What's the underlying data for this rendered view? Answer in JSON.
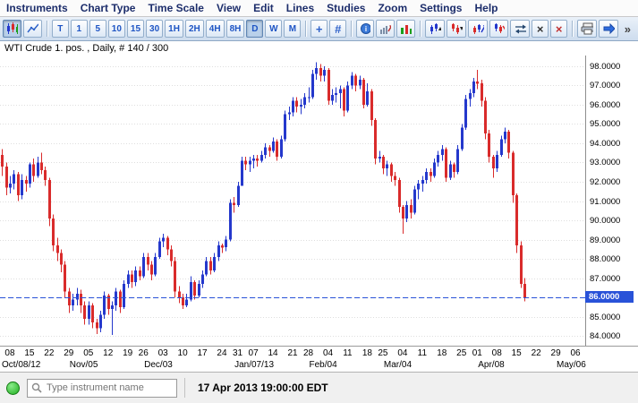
{
  "menu": {
    "items": [
      {
        "label": "Instruments"
      },
      {
        "label": "Chart Type"
      },
      {
        "label": "Time Scale"
      },
      {
        "label": "View"
      },
      {
        "label": "Edit"
      },
      {
        "label": "Lines"
      },
      {
        "label": "Studies"
      },
      {
        "label": "Zoom"
      },
      {
        "label": "Settings"
      },
      {
        "label": "Help"
      }
    ]
  },
  "toolbar": {
    "intervals": [
      {
        "label": "T"
      },
      {
        "label": "1"
      },
      {
        "label": "5"
      },
      {
        "label": "10"
      },
      {
        "label": "15"
      },
      {
        "label": "30"
      },
      {
        "label": "1H"
      },
      {
        "label": "2H"
      },
      {
        "label": "4H"
      },
      {
        "label": "8H"
      },
      {
        "label": "D",
        "selected": true
      },
      {
        "label": "W"
      },
      {
        "label": "M"
      }
    ],
    "crosshair_label": "+",
    "grid_label": "#",
    "delete_label": "×",
    "delete_all_label": "×",
    "more_label": "»",
    "icon_buttons": [
      "candlestick-style",
      "line-style",
      "crosshair",
      "grid",
      "indicator-info",
      "auto-scale",
      "volume-study",
      "pattern-up",
      "pattern-down",
      "trend-up",
      "trend-down",
      "reset-zoom",
      "delete-line",
      "delete-all",
      "print",
      "pointer",
      "more-tools"
    ]
  },
  "chart": {
    "title": "WTI Crude 1. pos. , Daily, # 140 / 300",
    "last_price_label": "86.0000",
    "price_axis_labels": [
      "98.0000",
      "97.0000",
      "96.0000",
      "95.0000",
      "94.0000",
      "93.0000",
      "92.0000",
      "91.0000",
      "90.0000",
      "89.0000",
      "88.0000",
      "87.0000",
      "86.0000",
      "85.0000",
      "84.0000"
    ]
  },
  "chart_data": {
    "type": "candlestick",
    "title": "WTI Crude 1. pos. , Daily, # 140 / 300",
    "instrument": "WTI Crude 1. pos.",
    "interval": "Daily",
    "bars_counter": "140 / 300",
    "y_range": [
      83.5,
      98.55
    ],
    "y_ticks": [
      84,
      85,
      86,
      87,
      88,
      89,
      90,
      91,
      92,
      93,
      94,
      95,
      96,
      97,
      98
    ],
    "current_price": 86.0,
    "total_slots": 149,
    "up_color": "#2438cc",
    "down_color": "#d92b2b",
    "grid": "horizontal-dotted",
    "legend_position": "none",
    "candles_ohlc": [
      [
        93.4,
        93.7,
        92.3,
        92.8
      ],
      [
        92.8,
        93.0,
        91.3,
        91.7
      ],
      [
        91.7,
        92.3,
        91.4,
        91.9
      ],
      [
        91.9,
        92.6,
        91.6,
        92.4
      ],
      [
        92.4,
        92.5,
        91.0,
        91.3
      ],
      [
        91.3,
        92.4,
        91.1,
        92.1
      ],
      [
        92.1,
        92.3,
        91.5,
        91.9
      ],
      [
        91.9,
        93.0,
        91.7,
        92.9
      ],
      [
        92.9,
        93.2,
        92.0,
        92.3
      ],
      [
        92.3,
        93.3,
        92.2,
        93.0
      ],
      [
        93.0,
        93.5,
        92.4,
        92.6
      ],
      [
        92.6,
        92.8,
        91.8,
        92.1
      ],
      [
        92.1,
        92.2,
        89.7,
        90.1
      ],
      [
        90.1,
        90.3,
        88.4,
        88.7
      ],
      [
        88.7,
        89.1,
        87.9,
        88.3
      ],
      [
        88.3,
        88.5,
        87.3,
        87.7
      ],
      [
        87.7,
        87.9,
        86.0,
        86.3
      ],
      [
        86.3,
        86.5,
        85.2,
        85.6
      ],
      [
        85.6,
        86.2,
        85.3,
        85.9
      ],
      [
        85.9,
        86.5,
        85.6,
        86.2
      ],
      [
        86.2,
        86.4,
        85.2,
        85.6
      ],
      [
        85.6,
        85.8,
        84.6,
        84.9
      ],
      [
        84.9,
        85.8,
        84.6,
        85.6
      ],
      [
        85.6,
        85.7,
        84.4,
        84.7
      ],
      [
        84.7,
        84.9,
        84.1,
        84.4
      ],
      [
        84.4,
        85.3,
        84.2,
        85.1
      ],
      [
        85.1,
        86.3,
        84.9,
        86.1
      ],
      [
        86.1,
        86.2,
        85.1,
        85.4
      ],
      [
        85.4,
        85.8,
        84.05,
        85.6
      ],
      [
        85.6,
        86.5,
        85.3,
        86.3
      ],
      [
        86.3,
        86.4,
        85.2,
        85.5
      ],
      [
        85.5,
        86.9,
        85.4,
        86.7
      ],
      [
        86.7,
        87.4,
        86.5,
        87.2
      ],
      [
        87.2,
        87.4,
        86.5,
        86.8
      ],
      [
        86.8,
        87.6,
        86.6,
        87.4
      ],
      [
        87.4,
        87.6,
        86.9,
        87.1
      ],
      [
        87.1,
        88.3,
        87.0,
        88.1
      ],
      [
        88.1,
        88.3,
        87.4,
        87.7
      ],
      [
        87.7,
        87.9,
        86.9,
        87.2
      ],
      [
        87.2,
        88.3,
        87.1,
        88.1
      ],
      [
        88.1,
        89.1,
        88.0,
        88.9
      ],
      [
        88.9,
        89.3,
        88.6,
        89.1
      ],
      [
        89.1,
        89.2,
        88.2,
        88.5
      ],
      [
        88.5,
        88.7,
        87.6,
        87.9
      ],
      [
        87.9,
        88.1,
        86.0,
        86.3
      ],
      [
        86.3,
        86.6,
        85.7,
        86.0
      ],
      [
        86.0,
        86.2,
        85.4,
        85.6
      ],
      [
        85.6,
        86.2,
        85.5,
        85.9
      ],
      [
        85.9,
        87.1,
        85.8,
        86.8
      ],
      [
        86.8,
        86.9,
        85.9,
        86.1
      ],
      [
        86.1,
        86.9,
        86.0,
        86.7
      ],
      [
        86.7,
        87.4,
        86.5,
        87.2
      ],
      [
        87.2,
        88.1,
        87.1,
        87.9
      ],
      [
        87.9,
        88.1,
        87.2,
        87.4
      ],
      [
        87.4,
        88.3,
        87.3,
        88.1
      ],
      [
        88.1,
        88.9,
        87.9,
        88.7
      ],
      [
        88.7,
        88.8,
        88.3,
        88.6
      ],
      [
        88.6,
        89.2,
        88.4,
        89.0
      ],
      [
        89.0,
        91.1,
        88.9,
        90.9
      ],
      [
        90.9,
        91.2,
        90.4,
        90.8
      ],
      [
        90.8,
        92.0,
        90.7,
        91.8
      ],
      [
        91.8,
        93.3,
        91.8,
        93.1
      ],
      [
        93.1,
        93.3,
        92.6,
        92.9
      ],
      [
        92.9,
        93.3,
        92.5,
        93.1
      ],
      [
        93.1,
        93.4,
        92.7,
        93.2
      ],
      [
        93.2,
        93.4,
        92.8,
        93.1
      ],
      [
        93.1,
        93.6,
        93.0,
        93.4
      ],
      [
        93.4,
        94.0,
        93.2,
        93.8
      ],
      [
        93.8,
        93.9,
        93.3,
        93.6
      ],
      [
        93.6,
        94.3,
        93.5,
        94.1
      ],
      [
        94.1,
        94.2,
        93.1,
        93.3
      ],
      [
        93.3,
        94.4,
        93.2,
        94.2
      ],
      [
        94.2,
        95.7,
        94.1,
        95.5
      ],
      [
        95.5,
        95.9,
        95.2,
        95.6
      ],
      [
        95.6,
        96.4,
        95.4,
        96.2
      ],
      [
        96.2,
        96.4,
        95.6,
        95.9
      ],
      [
        95.9,
        96.3,
        95.5,
        96.0
      ],
      [
        96.0,
        96.6,
        95.8,
        96.4
      ],
      [
        96.4,
        96.9,
        96.1,
        96.4
      ],
      [
        96.4,
        97.8,
        96.3,
        97.6
      ],
      [
        97.6,
        98.2,
        97.3,
        97.9
      ],
      [
        97.9,
        98.1,
        97.2,
        97.5
      ],
      [
        97.5,
        98.0,
        97.2,
        97.8
      ],
      [
        97.8,
        97.9,
        96.0,
        96.2
      ],
      [
        96.2,
        96.8,
        96.0,
        96.5
      ],
      [
        96.5,
        96.9,
        96.1,
        96.6
      ],
      [
        96.6,
        97.0,
        95.8,
        96.8
      ],
      [
        96.8,
        96.9,
        95.4,
        95.7
      ],
      [
        95.7,
        97.2,
        95.6,
        97.0
      ],
      [
        97.0,
        97.7,
        96.8,
        97.5
      ],
      [
        97.5,
        97.6,
        96.7,
        97.0
      ],
      [
        97.0,
        97.5,
        96.8,
        97.3
      ],
      [
        97.3,
        97.4,
        95.8,
        96.0
      ],
      [
        96.0,
        97.1,
        95.9,
        96.7
      ],
      [
        96.7,
        96.8,
        94.9,
        95.2
      ],
      [
        95.2,
        95.3,
        92.9,
        93.2
      ],
      [
        93.2,
        93.6,
        93.0,
        93.3
      ],
      [
        93.3,
        93.4,
        92.4,
        92.7
      ],
      [
        92.7,
        93.1,
        92.3,
        92.9
      ],
      [
        92.9,
        93.0,
        92.0,
        92.3
      ],
      [
        92.3,
        92.5,
        91.8,
        92.1
      ],
      [
        92.1,
        92.2,
        90.4,
        90.7
      ],
      [
        90.7,
        90.8,
        89.3,
        90.1
      ],
      [
        90.1,
        91.0,
        89.9,
        90.8
      ],
      [
        90.8,
        91.1,
        90.1,
        90.4
      ],
      [
        90.4,
        91.8,
        90.3,
        91.6
      ],
      [
        91.6,
        92.1,
        91.1,
        91.9
      ],
      [
        91.9,
        92.3,
        91.5,
        92.1
      ],
      [
        92.1,
        92.7,
        91.9,
        92.5
      ],
      [
        92.5,
        92.7,
        92.0,
        92.3
      ],
      [
        92.3,
        93.2,
        92.2,
        93.0
      ],
      [
        93.0,
        93.6,
        92.8,
        93.4
      ],
      [
        93.4,
        93.9,
        93.1,
        93.7
      ],
      [
        93.7,
        93.8,
        92.0,
        92.2
      ],
      [
        92.2,
        93.1,
        92.1,
        92.9
      ],
      [
        92.9,
        93.0,
        92.2,
        92.5
      ],
      [
        92.5,
        93.9,
        92.4,
        93.7
      ],
      [
        93.7,
        95.0,
        93.6,
        94.8
      ],
      [
        94.8,
        96.5,
        94.7,
        96.3
      ],
      [
        96.3,
        96.8,
        95.9,
        96.6
      ],
      [
        96.6,
        97.4,
        96.4,
        97.2
      ],
      [
        97.2,
        97.8,
        96.8,
        97.1
      ],
      [
        97.1,
        97.3,
        95.9,
        96.2
      ],
      [
        96.2,
        96.4,
        94.2,
        94.5
      ],
      [
        94.5,
        94.7,
        93.0,
        93.3
      ],
      [
        93.3,
        93.4,
        92.2,
        92.7
      ],
      [
        92.7,
        93.6,
        92.5,
        93.4
      ],
      [
        93.4,
        94.4,
        93.3,
        94.2
      ],
      [
        94.2,
        94.8,
        94.0,
        94.6
      ],
      [
        94.6,
        94.7,
        93.2,
        93.5
      ],
      [
        93.5,
        93.6,
        90.9,
        91.3
      ],
      [
        91.3,
        91.4,
        88.3,
        88.7
      ],
      [
        88.7,
        88.9,
        86.5,
        86.7
      ],
      [
        86.7,
        87.0,
        85.8,
        86.0
      ]
    ],
    "x_ticks": [
      {
        "label": "08",
        "slot": 2
      },
      {
        "label": "15",
        "slot": 7
      },
      {
        "label": "22",
        "slot": 12
      },
      {
        "label": "29",
        "slot": 17
      },
      {
        "label": "05",
        "slot": 22
      },
      {
        "label": "12",
        "slot": 27
      },
      {
        "label": "19",
        "slot": 32
      },
      {
        "label": "26",
        "slot": 36
      },
      {
        "label": "03",
        "slot": 41
      },
      {
        "label": "10",
        "slot": 46
      },
      {
        "label": "17",
        "slot": 51
      },
      {
        "label": "24",
        "slot": 56
      },
      {
        "label": "31",
        "slot": 60
      },
      {
        "label": "07",
        "slot": 64
      },
      {
        "label": "14",
        "slot": 69
      },
      {
        "label": "21",
        "slot": 74
      },
      {
        "label": "28",
        "slot": 78
      },
      {
        "label": "04",
        "slot": 83
      },
      {
        "label": "11",
        "slot": 88
      },
      {
        "label": "18",
        "slot": 93
      },
      {
        "label": "25",
        "slot": 97
      },
      {
        "label": "04",
        "slot": 102
      },
      {
        "label": "11",
        "slot": 107
      },
      {
        "label": "18",
        "slot": 112
      },
      {
        "label": "25",
        "slot": 117
      },
      {
        "label": "01",
        "slot": 121
      },
      {
        "label": "08",
        "slot": 126
      },
      {
        "label": "15",
        "slot": 131
      },
      {
        "label": "22",
        "slot": 136
      },
      {
        "label": "29",
        "slot": 141
      },
      {
        "label": "06",
        "slot": 146
      }
    ],
    "x_months": [
      {
        "label": "Oct/08/12",
        "slot": 2
      },
      {
        "label": "Nov/05",
        "slot": 22
      },
      {
        "label": "Dec/03",
        "slot": 41
      },
      {
        "label": "Jan/07/13",
        "slot": 64
      },
      {
        "label": "Feb/04",
        "slot": 83
      },
      {
        "label": "Mar/04",
        "slot": 102
      },
      {
        "label": "Apr/08",
        "slot": 126
      },
      {
        "label": "May/06",
        "slot": 146
      }
    ]
  },
  "statusbar": {
    "search_placeholder": "Type instrument name",
    "timestamp": "17 Apr 2013 19:00:00 EDT"
  }
}
